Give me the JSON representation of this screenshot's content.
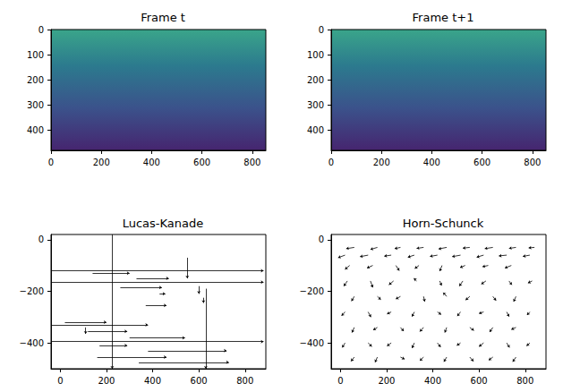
{
  "chart_data": [
    {
      "type": "image",
      "title": "Frame t",
      "xlim": [
        0,
        854
      ],
      "ylim": [
        480,
        0
      ],
      "xticks": [
        0,
        200,
        400,
        600,
        800
      ],
      "yticks": [
        0,
        100,
        200,
        300,
        400
      ]
    },
    {
      "type": "image",
      "title": "Frame t+1",
      "xlim": [
        0,
        854
      ],
      "ylim": [
        480,
        0
      ],
      "xticks": [
        0,
        200,
        400,
        600,
        800
      ],
      "yticks": [
        0,
        100,
        200,
        300,
        400
      ]
    },
    {
      "type": "quiver",
      "title": "Lucas-Kanade",
      "xlim": [
        -40,
        890
      ],
      "ylim": [
        -500,
        20
      ],
      "xticks": [
        0,
        200,
        400,
        600,
        800
      ],
      "yticks": [
        0,
        {
          "value": -200,
          "label": "−200"
        },
        {
          "value": -400,
          "label": "−400"
        }
      ],
      "arrows": [
        [
          -40,
          -120,
          920,
          0
        ],
        [
          -40,
          -165,
          920,
          0
        ],
        [
          225,
          20,
          0,
          -520
        ],
        [
          630,
          -190,
          0,
          -310
        ],
        [
          140,
          -130,
          160,
          0
        ],
        [
          330,
          -150,
          140,
          0
        ],
        [
          260,
          -185,
          180,
          0
        ],
        [
          370,
          -255,
          90,
          0
        ],
        [
          550,
          -70,
          0,
          -80
        ],
        [
          20,
          -320,
          180,
          0
        ],
        [
          -40,
          -330,
          420,
          0
        ],
        [
          120,
          -355,
          170,
          0
        ],
        [
          300,
          -380,
          240,
          0
        ],
        [
          -40,
          -395,
          920,
          0
        ],
        [
          170,
          -410,
          120,
          0
        ],
        [
          380,
          -430,
          340,
          0
        ],
        [
          160,
          -455,
          300,
          0
        ],
        [
          340,
          -475,
          390,
          0
        ],
        [
          620,
          -225,
          0,
          -20
        ],
        [
          600,
          -180,
          0,
          -30
        ],
        [
          430,
          -210,
          25,
          0
        ],
        [
          110,
          -340,
          0,
          -25
        ]
      ]
    },
    {
      "type": "quiver",
      "title": "Horn-Schunck",
      "xlim": [
        -40,
        890
      ],
      "ylim": [
        -500,
        20
      ],
      "xticks": [
        0,
        200,
        400,
        600,
        800
      ],
      "yticks": [
        0,
        {
          "value": -200,
          "label": "−200"
        },
        {
          "value": -400,
          "label": "−400"
        }
      ],
      "arrows": [
        [
          60,
          -30,
          -35,
          -5
        ],
        [
          160,
          -30,
          -30,
          -8
        ],
        [
          260,
          -30,
          -25,
          -5
        ],
        [
          360,
          -30,
          -30,
          -4
        ],
        [
          460,
          -30,
          -35,
          -6
        ],
        [
          560,
          -30,
          -30,
          -3
        ],
        [
          660,
          -30,
          -35,
          -5
        ],
        [
          760,
          -30,
          -30,
          -4
        ],
        [
          840,
          -30,
          -25,
          -2
        ],
        [
          20,
          -60,
          -30,
          -10
        ],
        [
          120,
          -60,
          -35,
          -6
        ],
        [
          220,
          -60,
          -30,
          -4
        ],
        [
          320,
          -60,
          -28,
          -8
        ],
        [
          420,
          -60,
          -32,
          -5
        ],
        [
          520,
          -60,
          -36,
          -6
        ],
        [
          620,
          -60,
          -30,
          -8
        ],
        [
          720,
          -60,
          -34,
          -3
        ],
        [
          820,
          -60,
          -30,
          -5
        ],
        [
          40,
          -100,
          -20,
          -15
        ],
        [
          140,
          -100,
          -25,
          -10
        ],
        [
          240,
          -100,
          15,
          -20
        ],
        [
          340,
          -100,
          -18,
          -12
        ],
        [
          440,
          -100,
          -10,
          -22
        ],
        [
          540,
          -100,
          -22,
          -8
        ],
        [
          640,
          -100,
          -25,
          -5
        ],
        [
          740,
          -100,
          -28,
          -10
        ],
        [
          30,
          -160,
          -15,
          -20
        ],
        [
          130,
          -160,
          10,
          -25
        ],
        [
          230,
          -160,
          -20,
          -15
        ],
        [
          330,
          -160,
          -12,
          10
        ],
        [
          430,
          -160,
          8,
          -18
        ],
        [
          530,
          -160,
          -15,
          -20
        ],
        [
          630,
          -160,
          -20,
          -12
        ],
        [
          730,
          -160,
          12,
          -15
        ],
        [
          830,
          -160,
          -18,
          -8
        ],
        [
          60,
          -220,
          -12,
          -18
        ],
        [
          160,
          -220,
          15,
          -12
        ],
        [
          260,
          -220,
          -20,
          -10
        ],
        [
          360,
          -220,
          5,
          -20
        ],
        [
          460,
          -220,
          -15,
          15
        ],
        [
          560,
          -220,
          -18,
          -14
        ],
        [
          660,
          -220,
          14,
          -16
        ],
        [
          760,
          -220,
          -10,
          -20
        ],
        [
          20,
          -280,
          -15,
          -15
        ],
        [
          120,
          -280,
          12,
          -20
        ],
        [
          220,
          -280,
          -18,
          -8
        ],
        [
          320,
          -280,
          -10,
          -18
        ],
        [
          420,
          -280,
          16,
          -10
        ],
        [
          520,
          -280,
          -14,
          -16
        ],
        [
          620,
          -280,
          -20,
          -6
        ],
        [
          720,
          -280,
          10,
          -18
        ],
        [
          820,
          -280,
          -12,
          -12
        ],
        [
          60,
          -340,
          -10,
          -20
        ],
        [
          160,
          -340,
          -18,
          -10
        ],
        [
          260,
          -340,
          14,
          -14
        ],
        [
          360,
          -340,
          -16,
          -16
        ],
        [
          460,
          -340,
          -8,
          -20
        ],
        [
          560,
          -340,
          18,
          -12
        ],
        [
          660,
          -340,
          -14,
          -18
        ],
        [
          760,
          -340,
          -20,
          -8
        ],
        [
          20,
          -400,
          -12,
          -18
        ],
        [
          120,
          -400,
          16,
          -14
        ],
        [
          220,
          -400,
          -18,
          -12
        ],
        [
          320,
          -400,
          -10,
          -20
        ],
        [
          420,
          -400,
          14,
          -16
        ],
        [
          520,
          -400,
          -16,
          -10
        ],
        [
          620,
          -400,
          -20,
          -14
        ],
        [
          720,
          -400,
          12,
          -18
        ],
        [
          820,
          -400,
          -14,
          -12
        ],
        [
          60,
          -455,
          -14,
          -16
        ],
        [
          160,
          -455,
          -10,
          -20
        ],
        [
          260,
          -455,
          18,
          -8
        ],
        [
          360,
          -455,
          -16,
          -14
        ],
        [
          460,
          -455,
          -12,
          -18
        ],
        [
          560,
          -455,
          16,
          -16
        ],
        [
          660,
          -455,
          -18,
          -12
        ],
        [
          760,
          -455,
          -14,
          -18
        ]
      ]
    }
  ]
}
